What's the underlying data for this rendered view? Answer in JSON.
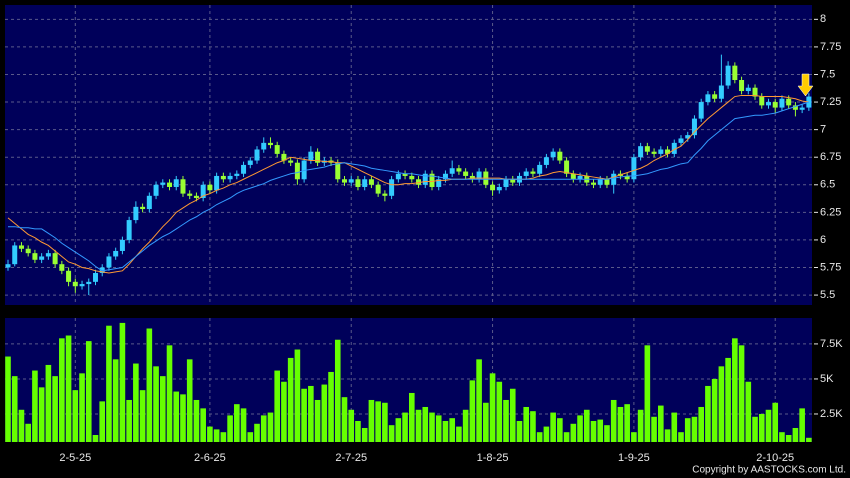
{
  "chart_data": [
    {
      "type": "candlestick",
      "categories": [
        null,
        null,
        null,
        null,
        null,
        null,
        null,
        null,
        null,
        null,
        "2-5-25",
        null,
        null,
        null,
        null,
        null,
        null,
        null,
        null,
        null,
        null,
        null,
        null,
        null,
        null,
        null,
        null,
        null,
        null,
        null,
        "2-6-25",
        null,
        null,
        null,
        null,
        null,
        null,
        null,
        null,
        null,
        null,
        null,
        null,
        null,
        null,
        null,
        null,
        null,
        null,
        null,
        null,
        "2-7-25",
        null,
        null,
        null,
        null,
        null,
        null,
        null,
        null,
        null,
        null,
        null,
        null,
        null,
        null,
        null,
        null,
        null,
        null,
        null,
        null,
        "1-8-25",
        null,
        null,
        null,
        null,
        null,
        null,
        null,
        null,
        null,
        null,
        null,
        null,
        null,
        null,
        null,
        null,
        null,
        null,
        null,
        null,
        "1-9-25",
        null,
        null,
        null,
        null,
        null,
        null,
        null,
        null,
        null,
        null,
        null,
        null,
        null,
        null,
        null,
        null,
        null,
        null,
        null,
        null,
        "2-10-25",
        null,
        null,
        null,
        null,
        null
      ],
      "open": [
        5.75,
        5.78,
        5.95,
        5.92,
        5.88,
        5.82,
        5.85,
        5.88,
        5.78,
        5.72,
        5.62,
        5.58,
        5.6,
        5.62,
        5.7,
        5.75,
        5.85,
        5.9,
        6.0,
        6.18,
        6.3,
        6.28,
        6.4,
        6.5,
        6.52,
        6.48,
        6.55,
        6.42,
        6.4,
        6.38,
        6.5,
        6.45,
        6.58,
        6.55,
        6.58,
        6.6,
        6.68,
        6.72,
        6.82,
        6.88,
        6.86,
        6.78,
        6.72,
        6.7,
        6.55,
        6.72,
        6.8,
        6.7,
        6.72,
        6.7,
        6.55,
        6.52,
        6.55,
        6.48,
        6.55,
        6.5,
        6.42,
        6.4,
        6.55,
        6.6,
        6.58,
        6.55,
        6.5,
        6.6,
        6.48,
        6.55,
        6.6,
        6.65,
        6.62,
        6.58,
        6.55,
        6.62,
        6.5,
        6.45,
        6.48,
        6.55,
        6.52,
        6.58,
        6.62,
        6.6,
        6.68,
        6.75,
        6.8,
        6.72,
        6.6,
        6.55,
        6.58,
        6.52,
        6.5,
        6.55,
        6.5,
        6.6,
        6.58,
        6.55,
        6.75,
        6.85,
        6.8,
        6.78,
        6.82,
        6.78,
        6.88,
        6.92,
        6.95,
        7.1,
        7.25,
        7.32,
        7.28,
        7.4,
        7.58,
        7.45,
        7.35,
        7.38,
        7.3,
        7.22,
        7.25,
        7.2,
        7.28,
        7.22,
        7.18,
        7.2
      ],
      "high": [
        5.82,
        5.98,
        5.98,
        5.95,
        5.91,
        5.88,
        5.91,
        5.91,
        5.81,
        5.75,
        5.65,
        5.63,
        5.65,
        5.73,
        5.78,
        5.88,
        5.93,
        6.03,
        6.21,
        6.35,
        6.33,
        6.43,
        6.53,
        6.55,
        6.55,
        6.58,
        6.58,
        6.45,
        6.43,
        6.53,
        6.53,
        6.61,
        6.61,
        6.61,
        6.63,
        6.71,
        6.75,
        6.85,
        6.93,
        6.93,
        6.89,
        6.81,
        6.75,
        6.73,
        6.75,
        6.85,
        6.83,
        6.75,
        6.75,
        6.73,
        6.58,
        6.58,
        6.58,
        6.58,
        6.58,
        6.53,
        6.45,
        6.58,
        6.63,
        6.63,
        6.61,
        6.58,
        6.63,
        6.63,
        6.58,
        6.63,
        6.72,
        6.68,
        6.65,
        6.61,
        6.65,
        6.65,
        6.53,
        6.51,
        6.58,
        6.58,
        6.61,
        6.65,
        6.65,
        6.71,
        6.78,
        6.83,
        6.83,
        6.75,
        6.63,
        6.61,
        6.61,
        6.55,
        6.58,
        6.58,
        6.63,
        6.63,
        6.61,
        6.78,
        6.88,
        6.88,
        6.83,
        6.85,
        6.85,
        6.91,
        6.95,
        6.98,
        7.13,
        7.28,
        7.35,
        7.35,
        7.68,
        7.62,
        7.61,
        7.48,
        7.41,
        7.41,
        7.33,
        7.28,
        7.28,
        7.31,
        7.31,
        7.25,
        7.23,
        7.33
      ],
      "low": [
        5.72,
        5.76,
        5.89,
        5.85,
        5.79,
        5.79,
        5.82,
        5.75,
        5.69,
        5.58,
        5.52,
        5.55,
        5.5,
        5.59,
        5.67,
        5.72,
        5.82,
        5.87,
        5.97,
        6.15,
        6.25,
        6.25,
        6.37,
        6.47,
        6.45,
        6.45,
        6.39,
        6.37,
        6.35,
        6.35,
        6.42,
        6.42,
        6.52,
        6.52,
        6.55,
        6.57,
        6.65,
        6.69,
        6.79,
        6.83,
        6.75,
        6.69,
        6.67,
        6.5,
        6.52,
        6.69,
        6.67,
        6.67,
        6.67,
        6.52,
        6.49,
        6.49,
        6.45,
        6.45,
        6.47,
        6.39,
        6.35,
        6.37,
        6.52,
        6.55,
        6.52,
        6.47,
        6.47,
        6.45,
        6.45,
        6.52,
        6.57,
        6.59,
        6.55,
        6.52,
        6.52,
        6.47,
        6.4,
        6.42,
        6.45,
        6.49,
        6.49,
        6.55,
        6.57,
        6.57,
        6.65,
        6.72,
        6.69,
        6.57,
        6.52,
        6.52,
        6.49,
        6.47,
        6.47,
        6.47,
        6.42,
        6.55,
        6.52,
        6.52,
        6.72,
        6.77,
        6.75,
        6.75,
        6.75,
        6.75,
        6.85,
        6.89,
        6.92,
        7.07,
        7.22,
        7.25,
        7.25,
        7.37,
        7.42,
        7.32,
        7.32,
        7.27,
        7.19,
        7.19,
        7.15,
        7.17,
        7.19,
        7.12,
        7.15,
        7.17
      ],
      "close": [
        5.78,
        5.95,
        5.92,
        5.88,
        5.82,
        5.85,
        5.88,
        5.78,
        5.72,
        5.62,
        5.58,
        5.6,
        5.62,
        5.7,
        5.75,
        5.85,
        5.9,
        6.0,
        6.18,
        6.3,
        6.28,
        6.4,
        6.5,
        6.52,
        6.48,
        6.55,
        6.42,
        6.4,
        6.38,
        6.5,
        6.45,
        6.58,
        6.55,
        6.58,
        6.6,
        6.68,
        6.72,
        6.82,
        6.88,
        6.86,
        6.78,
        6.72,
        6.7,
        6.55,
        6.72,
        6.8,
        6.7,
        6.72,
        6.7,
        6.55,
        6.52,
        6.55,
        6.48,
        6.55,
        6.5,
        6.42,
        6.4,
        6.55,
        6.6,
        6.58,
        6.55,
        6.5,
        6.6,
        6.48,
        6.55,
        6.6,
        6.65,
        6.62,
        6.58,
        6.55,
        6.62,
        6.5,
        6.45,
        6.48,
        6.55,
        6.52,
        6.58,
        6.62,
        6.6,
        6.68,
        6.75,
        6.8,
        6.72,
        6.6,
        6.55,
        6.58,
        6.52,
        6.5,
        6.55,
        6.5,
        6.6,
        6.58,
        6.55,
        6.75,
        6.85,
        6.8,
        6.78,
        6.82,
        6.78,
        6.88,
        6.92,
        6.95,
        7.1,
        7.25,
        7.32,
        7.28,
        7.4,
        7.58,
        7.45,
        7.35,
        7.38,
        7.3,
        7.22,
        7.25,
        7.2,
        7.28,
        7.22,
        7.18,
        7.2,
        7.3
      ],
      "up_color": "#33ccff",
      "down_color": "#99ff33",
      "series": [
        {
          "color": "#ff9933",
          "values": [
            6.2,
            6.15,
            6.1,
            6.05,
            6.02,
            5.98,
            5.95,
            5.9,
            5.85,
            5.8,
            5.78,
            5.75,
            5.74,
            5.72,
            5.71,
            5.7,
            5.71,
            5.72,
            5.78,
            5.85,
            5.92,
            5.98,
            6.05,
            6.12,
            6.18,
            6.25,
            6.29,
            6.33,
            6.36,
            6.4,
            6.42,
            6.45,
            6.47,
            6.5,
            6.52,
            6.55,
            6.58,
            6.61,
            6.64,
            6.67,
            6.7,
            6.72,
            6.75,
            6.74,
            6.73,
            6.72,
            6.72,
            6.71,
            6.71,
            6.7,
            6.7,
            6.67,
            6.64,
            6.61,
            6.58,
            6.55,
            6.52,
            6.5,
            6.5,
            6.51,
            6.51,
            6.52,
            6.53,
            6.53,
            6.54,
            6.54,
            6.55,
            6.55,
            6.55,
            6.56,
            6.56,
            6.56,
            6.56,
            6.56,
            6.55,
            6.55,
            6.55,
            6.55,
            6.56,
            6.58,
            6.59,
            6.61,
            6.62,
            6.61,
            6.6,
            6.59,
            6.58,
            6.57,
            6.56,
            6.55,
            6.57,
            6.59,
            6.61,
            6.63,
            6.65,
            6.68,
            6.72,
            6.75,
            6.78,
            6.82,
            6.85,
            6.91,
            6.98,
            7.04,
            7.1,
            7.15,
            7.2,
            7.25,
            7.3,
            7.31,
            7.31,
            7.31,
            7.3,
            7.3,
            7.3,
            7.3,
            7.29,
            7.28,
            7.26,
            7.25
          ]
        },
        {
          "color": "#3399ff",
          "values": [
            6.12,
            6.12,
            6.11,
            6.11,
            6.1,
            6.1,
            6.06,
            6.02,
            5.97,
            5.93,
            5.89,
            5.85,
            5.81,
            5.76,
            5.72,
            5.73,
            5.74,
            5.75,
            5.8,
            5.85,
            5.9,
            5.95,
            5.99,
            6.03,
            6.06,
            6.1,
            6.14,
            6.18,
            6.21,
            6.25,
            6.28,
            6.32,
            6.35,
            6.38,
            6.42,
            6.45,
            6.47,
            6.49,
            6.51,
            6.54,
            6.56,
            6.58,
            6.6,
            6.61,
            6.63,
            6.64,
            6.65,
            6.66,
            6.68,
            6.69,
            6.7,
            6.69,
            6.68,
            6.67,
            6.65,
            6.64,
            6.63,
            6.62,
            6.61,
            6.6,
            6.6,
            6.59,
            6.58,
            6.58,
            6.57,
            6.56,
            6.55,
            6.55,
            6.55,
            6.55,
            6.55,
            6.55,
            6.55,
            6.55,
            6.55,
            6.55,
            6.55,
            6.55,
            6.55,
            6.55,
            6.55,
            6.55,
            6.55,
            6.55,
            6.55,
            6.55,
            6.55,
            6.55,
            6.55,
            6.55,
            6.56,
            6.57,
            6.58,
            6.58,
            6.59,
            6.6,
            6.62,
            6.64,
            6.65,
            6.67,
            6.69,
            6.7,
            6.77,
            6.83,
            6.9,
            6.95,
            7.0,
            7.05,
            7.1,
            7.11,
            7.12,
            7.13,
            7.13,
            7.14,
            7.15,
            7.17,
            7.19,
            7.21,
            7.23,
            7.25
          ]
        }
      ],
      "ylim": [
        5.41,
        8.13
      ],
      "yticks": [
        5.5,
        5.75,
        6,
        6.25,
        6.5,
        6.75,
        7,
        7.25,
        7.5,
        7.75,
        8
      ],
      "grid": true
    },
    {
      "type": "bar",
      "values": [
        6600,
        5200,
        2800,
        1800,
        5600,
        4400,
        6000,
        5200,
        7900,
        8100,
        4200,
        5400,
        7700,
        1000,
        3400,
        8800,
        6400,
        9000,
        3500,
        6100,
        4200,
        8600,
        5900,
        5200,
        7400,
        4100,
        3900,
        6400,
        3500,
        2900,
        1600,
        1400,
        1200,
        2400,
        3200,
        2900,
        1200,
        1800,
        2400,
        2600,
        5600,
        4800,
        6500,
        7100,
        4300,
        4500,
        3500,
        4600,
        5500,
        7800,
        3700,
        2800,
        2000,
        1500,
        3500,
        3400,
        3300,
        1700,
        2200,
        2600,
        4000,
        2800,
        3000,
        2600,
        2400,
        2000,
        2200,
        1600,
        2800,
        4900,
        6400,
        3300,
        5400,
        4800,
        3500,
        4300,
        2000,
        3000,
        2700,
        1200,
        1600,
        2600,
        2200,
        1200,
        1800,
        2400,
        2800,
        2000,
        2100,
        1700,
        3500,
        3000,
        3200,
        1200,
        2800,
        7400,
        2300,
        3100,
        1400,
        2600,
        1200,
        2200,
        2300,
        3000,
        4500,
        5000,
        5900,
        6500,
        7900,
        7400,
        4800,
        2300,
        2500,
        2800,
        3300,
        1200,
        1000,
        1500,
        2900,
        800
      ],
      "color": "#66ff00",
      "ylim": [
        500,
        9350
      ],
      "yticks": [
        {
          "value": 2500,
          "label": "2.5K"
        },
        {
          "value": 5000,
          "label": "5K"
        },
        {
          "value": 7500,
          "label": "7.5K"
        }
      ],
      "grid": true
    }
  ],
  "footer": "Copyright by AASTOCKS.com Ltd."
}
